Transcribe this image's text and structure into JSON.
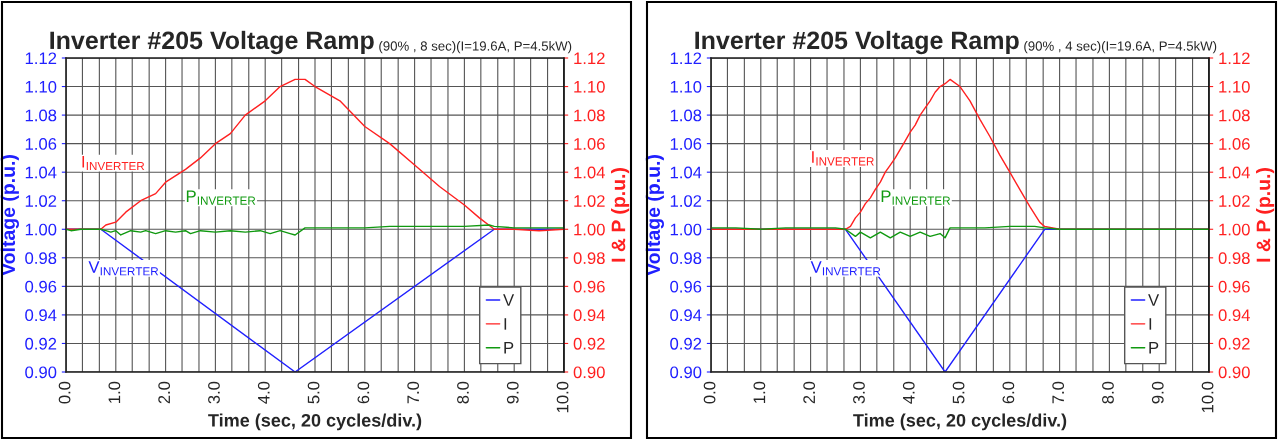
{
  "chart_data": [
    {
      "type": "line",
      "title": "Inverter #205 Voltage Ramp",
      "subtitle": "(90% , 8 sec)(I=19.6A, P=4.5kW)",
      "xlabel": "Time (sec, 20 cycles/div.)",
      "ylabel": "Voltage (p.u.)",
      "y2label": "I & P (p.u.)",
      "xlim": [
        0,
        10
      ],
      "xticks": [
        {
          "value": 0,
          "label": "0.0"
        },
        {
          "value": 0.33,
          "label": null
        },
        {
          "value": 0.67,
          "label": null
        },
        {
          "value": 1,
          "label": "1.0"
        },
        {
          "value": 1.33,
          "label": null
        },
        {
          "value": 1.67,
          "label": null
        },
        {
          "value": 2,
          "label": "2.0"
        },
        {
          "value": 2.33,
          "label": null
        },
        {
          "value": 2.67,
          "label": null
        },
        {
          "value": 3,
          "label": "3.0"
        },
        {
          "value": 3.33,
          "label": null
        },
        {
          "value": 3.67,
          "label": null
        },
        {
          "value": 4,
          "label": "4.0"
        },
        {
          "value": 4.33,
          "label": null
        },
        {
          "value": 4.67,
          "label": null
        },
        {
          "value": 5,
          "label": "5.0"
        },
        {
          "value": 5.33,
          "label": null
        },
        {
          "value": 5.67,
          "label": null
        },
        {
          "value": 6,
          "label": "6.0"
        },
        {
          "value": 6.33,
          "label": null
        },
        {
          "value": 6.67,
          "label": null
        },
        {
          "value": 7,
          "label": "7.0"
        },
        {
          "value": 7.33,
          "label": null
        },
        {
          "value": 7.67,
          "label": null
        },
        {
          "value": 8,
          "label": "8.0"
        },
        {
          "value": 8.33,
          "label": null
        },
        {
          "value": 8.67,
          "label": null
        },
        {
          "value": 9,
          "label": "9.0"
        },
        {
          "value": 9.33,
          "label": null
        },
        {
          "value": 9.67,
          "label": null
        },
        {
          "value": 10,
          "label": "10.0"
        }
      ],
      "ylim": [
        0.9,
        1.12
      ],
      "yticks": [
        {
          "value": 0.9,
          "label": "0.90"
        },
        {
          "value": 0.92,
          "label": "0.92"
        },
        {
          "value": 0.94,
          "label": "0.94"
        },
        {
          "value": 0.96,
          "label": "0.96"
        },
        {
          "value": 0.98,
          "label": "0.98"
        },
        {
          "value": 1.0,
          "label": "1.00"
        },
        {
          "value": 1.02,
          "label": "1.02"
        },
        {
          "value": 1.04,
          "label": "1.04"
        },
        {
          "value": 1.06,
          "label": "1.06"
        },
        {
          "value": 1.08,
          "label": "1.08"
        },
        {
          "value": 1.1,
          "label": "1.10"
        },
        {
          "value": 1.12,
          "label": "1.12"
        }
      ],
      "y2lim": [
        0.9,
        1.12
      ],
      "y2ticks": [
        {
          "value": 0.9,
          "label": "0.90"
        },
        {
          "value": 0.92,
          "label": "0.92"
        },
        {
          "value": 0.94,
          "label": "0.94"
        },
        {
          "value": 0.96,
          "label": "0.96"
        },
        {
          "value": 0.98,
          "label": "0.98"
        },
        {
          "value": 1.0,
          "label": "1.00"
        },
        {
          "value": 1.02,
          "label": "1.02"
        },
        {
          "value": 1.04,
          "label": "1.04"
        },
        {
          "value": 1.06,
          "label": "1.06"
        },
        {
          "value": 1.08,
          "label": "1.08"
        },
        {
          "value": 1.1,
          "label": "1.10"
        },
        {
          "value": 1.12,
          "label": "1.12"
        }
      ],
      "grid": true,
      "legend": "bottom right",
      "marker": "none",
      "line_style": "solid",
      "series": [
        {
          "name": "V",
          "color": "#2020ff",
          "x": [
            0,
            0.7,
            4.6,
            8.6,
            10
          ],
          "values": [
            1.0,
            1.0,
            0.9,
            1.0,
            1.0
          ]
        },
        {
          "name": "I",
          "color": "#ff2020",
          "axis": "y2",
          "x": [
            0,
            0.7,
            0.8,
            1.0,
            1.2,
            1.5,
            1.8,
            2.0,
            2.4,
            2.7,
            3.0,
            3.3,
            3.6,
            4.0,
            4.3,
            4.6,
            4.8,
            5.0,
            5.5,
            6.0,
            6.5,
            7.0,
            7.5,
            8.0,
            8.3,
            8.6,
            9.0,
            9.5,
            10
          ],
          "values": [
            1.0,
            1.0,
            1.003,
            1.005,
            1.012,
            1.02,
            1.025,
            1.033,
            1.042,
            1.05,
            1.06,
            1.067,
            1.08,
            1.09,
            1.1,
            1.105,
            1.105,
            1.1,
            1.09,
            1.072,
            1.06,
            1.045,
            1.03,
            1.017,
            1.008,
            1.0,
            1.0,
            0.999,
            1.0
          ]
        },
        {
          "name": "P",
          "color": "#109910",
          "axis": "y2",
          "x": [
            0,
            0.1,
            0.3,
            0.5,
            0.7,
            0.8,
            0.9,
            1.0,
            1.1,
            1.3,
            1.5,
            1.6,
            1.8,
            2.0,
            2.2,
            2.4,
            2.5,
            2.7,
            3.0,
            3.3,
            3.6,
            3.9,
            4.1,
            4.3,
            4.5,
            4.6,
            4.8,
            5.0,
            5.5,
            6.0,
            6.5,
            7.0,
            7.5,
            8.0,
            8.5,
            8.6,
            9.0,
            9.5,
            10
          ],
          "values": [
            1.0,
            0.999,
            1.0,
            1.0,
            1.0,
            0.999,
            0.998,
            0.999,
            0.996,
            0.999,
            0.998,
            0.999,
            0.997,
            0.999,
            0.998,
            0.999,
            0.997,
            0.999,
            0.998,
            0.999,
            0.998,
            0.999,
            0.997,
            0.999,
            0.997,
            0.996,
            1.001,
            1.001,
            1.001,
            1.001,
            1.002,
            1.002,
            1.002,
            1.002,
            1.003,
            1.002,
            1.001,
            1.001,
            1.001
          ]
        }
      ],
      "annotations": [
        "V$_{INVERTER}$",
        "I$_{INVERTER}$",
        "P$_{INVERTER}$"
      ]
    },
    {
      "type": "line",
      "title": "Inverter #205 Voltage Ramp",
      "subtitle": "(90% , 4 sec)(I=19.6A, P=4.5kW)",
      "xlabel": "Time (sec, 20 cycles/div.)",
      "ylabel": "Voltage (p.u.)",
      "y2label": "I & P (p.u.)",
      "xlim": [
        0,
        10
      ],
      "xticks": [
        {
          "value": 0,
          "label": "0.0"
        },
        {
          "value": 0.33,
          "label": null
        },
        {
          "value": 0.67,
          "label": null
        },
        {
          "value": 1,
          "label": "1.0"
        },
        {
          "value": 1.33,
          "label": null
        },
        {
          "value": 1.67,
          "label": null
        },
        {
          "value": 2,
          "label": "2.0"
        },
        {
          "value": 2.33,
          "label": null
        },
        {
          "value": 2.67,
          "label": null
        },
        {
          "value": 3,
          "label": "3.0"
        },
        {
          "value": 3.33,
          "label": null
        },
        {
          "value": 3.67,
          "label": null
        },
        {
          "value": 4,
          "label": "4.0"
        },
        {
          "value": 4.33,
          "label": null
        },
        {
          "value": 4.67,
          "label": null
        },
        {
          "value": 5,
          "label": "5.0"
        },
        {
          "value": 5.33,
          "label": null
        },
        {
          "value": 5.67,
          "label": null
        },
        {
          "value": 6,
          "label": "6.0"
        },
        {
          "value": 6.33,
          "label": null
        },
        {
          "value": 6.67,
          "label": null
        },
        {
          "value": 7,
          "label": "7.0"
        },
        {
          "value": 7.33,
          "label": null
        },
        {
          "value": 7.67,
          "label": null
        },
        {
          "value": 8,
          "label": "8.0"
        },
        {
          "value": 8.33,
          "label": null
        },
        {
          "value": 8.67,
          "label": null
        },
        {
          "value": 9,
          "label": "9.0"
        },
        {
          "value": 9.33,
          "label": null
        },
        {
          "value": 9.67,
          "label": null
        },
        {
          "value": 10,
          "label": "10.0"
        }
      ],
      "ylim": [
        0.9,
        1.12
      ],
      "yticks": [
        {
          "value": 0.9,
          "label": "0.90"
        },
        {
          "value": 0.92,
          "label": "0.92"
        },
        {
          "value": 0.94,
          "label": "0.94"
        },
        {
          "value": 0.96,
          "label": "0.96"
        },
        {
          "value": 0.98,
          "label": "0.98"
        },
        {
          "value": 1.0,
          "label": "1.00"
        },
        {
          "value": 1.02,
          "label": "1.02"
        },
        {
          "value": 1.04,
          "label": "1.04"
        },
        {
          "value": 1.06,
          "label": "1.06"
        },
        {
          "value": 1.08,
          "label": "1.08"
        },
        {
          "value": 1.1,
          "label": "1.10"
        },
        {
          "value": 1.12,
          "label": "1.12"
        }
      ],
      "y2lim": [
        0.9,
        1.12
      ],
      "y2ticks": [
        {
          "value": 0.9,
          "label": "0.90"
        },
        {
          "value": 0.92,
          "label": "0.92"
        },
        {
          "value": 0.94,
          "label": "0.94"
        },
        {
          "value": 0.96,
          "label": "0.96"
        },
        {
          "value": 0.98,
          "label": "0.98"
        },
        {
          "value": 1.0,
          "label": "1.00"
        },
        {
          "value": 1.02,
          "label": "1.02"
        },
        {
          "value": 1.04,
          "label": "1.04"
        },
        {
          "value": 1.06,
          "label": "1.06"
        },
        {
          "value": 1.08,
          "label": "1.08"
        },
        {
          "value": 1.1,
          "label": "1.10"
        },
        {
          "value": 1.12,
          "label": "1.12"
        }
      ],
      "grid": true,
      "legend": "bottom right",
      "marker": "none",
      "line_style": "solid",
      "series": [
        {
          "name": "V",
          "color": "#2020ff",
          "x": [
            0,
            2.7,
            4.7,
            6.7,
            10
          ],
          "values": [
            1.0,
            1.0,
            0.9,
            1.0,
            1.0
          ]
        },
        {
          "name": "I",
          "color": "#ff2020",
          "axis": "y2",
          "x": [
            0,
            2.7,
            2.8,
            2.9,
            3.0,
            3.1,
            3.2,
            3.3,
            3.4,
            3.5,
            3.6,
            3.7,
            3.8,
            3.9,
            4.0,
            4.1,
            4.2,
            4.3,
            4.4,
            4.5,
            4.6,
            4.7,
            4.8,
            5.0,
            5.2,
            5.4,
            5.6,
            5.8,
            6.0,
            6.2,
            6.4,
            6.6,
            6.7,
            7.0,
            8.0,
            9.0,
            10
          ],
          "values": [
            1.0,
            1.0,
            1.002,
            1.008,
            1.012,
            1.018,
            1.022,
            1.028,
            1.033,
            1.04,
            1.045,
            1.05,
            1.056,
            1.062,
            1.068,
            1.073,
            1.08,
            1.085,
            1.09,
            1.096,
            1.1,
            1.102,
            1.105,
            1.1,
            1.09,
            1.077,
            1.065,
            1.052,
            1.04,
            1.028,
            1.016,
            1.005,
            1.002,
            1.0,
            1.0,
            1.0,
            1.0
          ]
        },
        {
          "name": "P",
          "color": "#109910",
          "axis": "y2",
          "x": [
            0,
            0.5,
            1.0,
            1.5,
            2.0,
            2.5,
            2.7,
            2.9,
            3.0,
            3.2,
            3.4,
            3.6,
            3.8,
            4.0,
            4.2,
            4.4,
            4.6,
            4.7,
            4.8,
            5.0,
            5.5,
            6.0,
            6.5,
            6.7,
            7.0,
            7.5,
            8.0,
            9.0,
            10
          ],
          "values": [
            1.001,
            1.001,
            1.0,
            1.001,
            1.001,
            1.001,
            1.0,
            0.995,
            0.998,
            0.994,
            0.998,
            0.994,
            0.998,
            0.995,
            0.998,
            0.995,
            0.997,
            0.994,
            1.001,
            1.001,
            1.001,
            1.002,
            1.002,
            1.001,
            1.0,
            1.0,
            1.0,
            1.0,
            1.0
          ]
        }
      ],
      "annotations": [
        "V$_{INVERTER}$",
        "I$_{INVERTER}$",
        "P$_{INVERTER}$"
      ]
    }
  ]
}
